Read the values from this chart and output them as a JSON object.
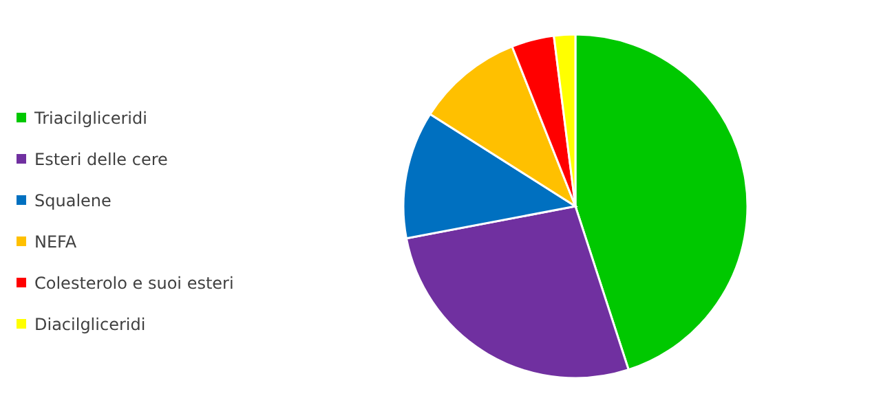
{
  "chart_data": {
    "type": "pie",
    "categories": [
      "Triacilgliceridi",
      "Esteri delle cere",
      "Squalene",
      "NEFA",
      "Colesterolo e suoi esteri",
      "Diacilgliceridi"
    ],
    "values": [
      45,
      27,
      12,
      10,
      4,
      2
    ],
    "colors": [
      "#00c800",
      "#7030a0",
      "#0070c0",
      "#ffc000",
      "#ff0000",
      "#ffff00"
    ],
    "legend": "left"
  }
}
